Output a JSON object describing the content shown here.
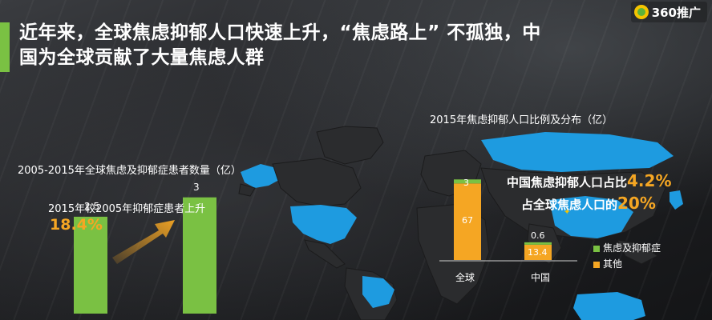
{
  "header": {
    "title_line1": "近年来，全球焦虑抑郁人口快速上升，“焦虑路上” 不孤独，中",
    "title_line2": "国为全球贡献了大量焦虑人群",
    "logo_text": "360推广"
  },
  "left_chart": {
    "title": "2005-2015年全球焦虑及抑郁症患者数量（亿）",
    "compare_text": "2015年较2005年抑郁症患者上升",
    "compare_pct": "18.4%",
    "bar_2005_label": "2.5",
    "bar_2015_label": "3"
  },
  "right_chart": {
    "title": "2015年焦虑抑郁人口比例及分布（亿）",
    "china_share_text": "中国焦虑抑郁人口占比",
    "china_share_value": "4.2%",
    "china_anxiety_text": "占全球焦虑人口的",
    "china_anxiety_value": "20%",
    "global_top_label": "3",
    "global_bottom_label": "67",
    "china_top_label": "0.6",
    "china_bottom_label": "13.4",
    "x_global": "全球",
    "x_china": "中国",
    "legend_anxiety": "焦虑及抑郁症",
    "legend_other": "其他"
  },
  "chart_data": [
    {
      "type": "bar",
      "title": "2005-2015年全球焦虑及抑郁症患者数量（亿）",
      "categories": [
        "",
        ""
      ],
      "values": [
        2.5,
        3
      ],
      "ylim": [
        0,
        3.2
      ],
      "annotation": "2015年较2005年抑郁症患者上升 18.4%",
      "colors": [
        "#7ac143"
      ]
    },
    {
      "type": "bar",
      "title": "2015年焦虑抑郁人口比例及分布（亿）",
      "categories": [
        "全球",
        "中国"
      ],
      "stacked": true,
      "series": [
        {
          "name": "焦虑及抑郁症",
          "values": [
            3,
            0.6
          ]
        },
        {
          "name": "其他",
          "values": [
            67,
            13.4
          ]
        }
      ],
      "ylim": [
        0,
        70
      ],
      "colors": {
        "焦虑及抑郁症": "#7ac143",
        "其他": "#f5a623"
      },
      "legend": "right"
    }
  ]
}
